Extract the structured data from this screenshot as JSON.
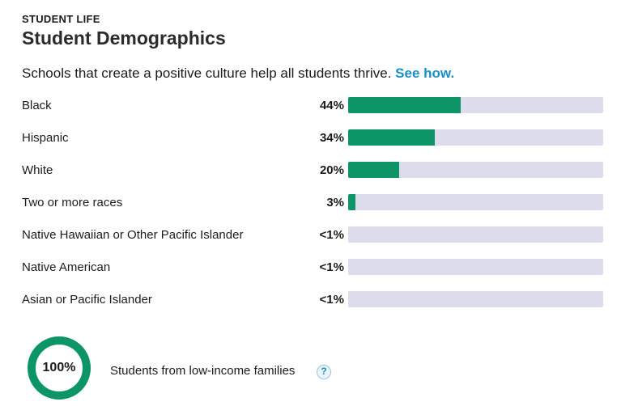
{
  "section_label": "STUDENT LIFE",
  "title": "Student Demographics",
  "intro": {
    "text": "Schools that create a positive culture help all students thrive.",
    "link_label": "See how."
  },
  "demographics": [
    {
      "label": "Black",
      "percent_label": "44%",
      "value": 44
    },
    {
      "label": "Hispanic",
      "percent_label": "34%",
      "value": 34
    },
    {
      "label": "White",
      "percent_label": "20%",
      "value": 20
    },
    {
      "label": "Two or more races",
      "percent_label": "3%",
      "value": 3
    },
    {
      "label": "Native Hawaiian or Other Pacific Islander",
      "percent_label": "<1%",
      "value": 0
    },
    {
      "label": "Native American",
      "percent_label": "<1%",
      "value": 0
    },
    {
      "label": "Asian or Pacific Islander",
      "percent_label": "<1%",
      "value": 0
    }
  ],
  "low_income": {
    "percent_label": "100%",
    "value": 100,
    "label": "Students from low-income families",
    "help_icon": "question-icon",
    "help_glyph": "?"
  },
  "colors": {
    "bar_fill": "#0d9568",
    "bar_track": "#dcdcec",
    "link": "#1a8fc6"
  }
}
